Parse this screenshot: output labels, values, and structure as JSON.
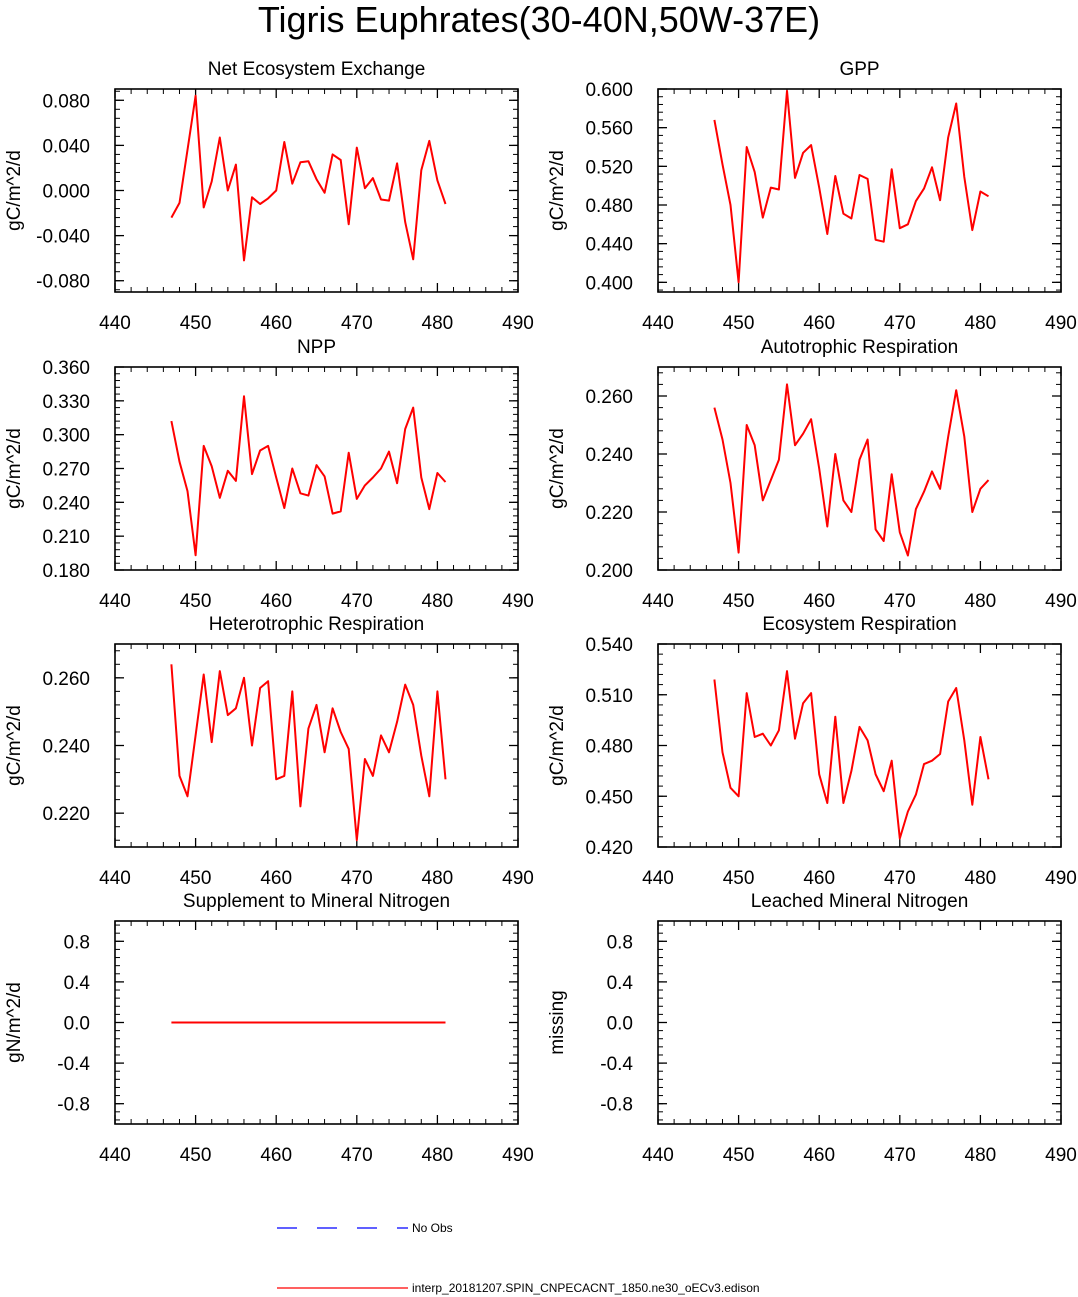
{
  "title": "Tigris Euphrates(30-40N,50W-37E)",
  "colors": {
    "model": "#ff0000",
    "obs": "#0000ff",
    "axis": "#000000"
  },
  "legend": {
    "obs_label": "No Obs",
    "model_label": "interp_20181207.SPIN_CNPECACNT_1850.ne30_oECv3.edison"
  },
  "chart_data": [
    {
      "type": "line",
      "title": "Net Ecosystem Exchange",
      "ylabel": "gC/m^2/d",
      "xlim": [
        440,
        490
      ],
      "xticks": [
        440,
        450,
        460,
        470,
        480,
        490
      ],
      "xtick_labels": [
        "440",
        "450",
        "460",
        "470",
        "480",
        "490"
      ],
      "ylim": [
        -0.09,
        0.09
      ],
      "yticks": [
        -0.08,
        -0.04,
        0.0,
        0.04,
        0.08
      ],
      "ytick_labels": [
        "-0.080",
        "-0.040",
        "0.000",
        "0.040",
        "0.080"
      ],
      "x": [
        447,
        448,
        449,
        450,
        451,
        452,
        453,
        454,
        455,
        456,
        457,
        458,
        459,
        460,
        461,
        462,
        463,
        464,
        465,
        466,
        467,
        468,
        469,
        470,
        471,
        472,
        473,
        474,
        475,
        476,
        477,
        478,
        479,
        480,
        481
      ],
      "series": [
        {
          "name": "interp_20181207.SPIN_CNPECACNT_1850.ne30_oECv3.edison",
          "values": [
            -0.024,
            -0.011,
            0.036,
            0.084,
            -0.015,
            0.008,
            0.047,
            0.0,
            0.023,
            -0.062,
            -0.006,
            -0.012,
            -0.007,
            0.0,
            0.043,
            0.006,
            0.025,
            0.026,
            0.01,
            -0.002,
            0.032,
            0.027,
            -0.03,
            0.038,
            0.002,
            0.011,
            -0.008,
            -0.009,
            0.024,
            -0.028,
            -0.061,
            0.018,
            0.044,
            0.009,
            -0.012
          ]
        }
      ]
    },
    {
      "type": "line",
      "title": "GPP",
      "ylabel": "gC/m^2/d",
      "xlim": [
        440,
        490
      ],
      "xticks": [
        440,
        450,
        460,
        470,
        480,
        490
      ],
      "xtick_labels": [
        "440",
        "450",
        "460",
        "470",
        "480",
        "490"
      ],
      "ylim": [
        0.39,
        0.6
      ],
      "yticks": [
        0.4,
        0.44,
        0.48,
        0.52,
        0.56,
        0.6
      ],
      "ytick_labels": [
        "0.400",
        "0.440",
        "0.480",
        "0.520",
        "0.560",
        "0.600"
      ],
      "x": [
        447,
        448,
        449,
        450,
        451,
        452,
        453,
        454,
        455,
        456,
        457,
        458,
        459,
        460,
        461,
        462,
        463,
        464,
        465,
        466,
        467,
        468,
        469,
        470,
        471,
        472,
        473,
        474,
        475,
        476,
        477,
        478,
        479,
        480,
        481
      ],
      "series": [
        {
          "name": "interp_20181207.SPIN_CNPECACNT_1850.ne30_oECv3.edison",
          "values": [
            0.568,
            0.522,
            0.48,
            0.4,
            0.54,
            0.514,
            0.467,
            0.498,
            0.496,
            0.598,
            0.508,
            0.534,
            0.542,
            0.498,
            0.45,
            0.51,
            0.471,
            0.466,
            0.511,
            0.507,
            0.444,
            0.442,
            0.517,
            0.456,
            0.46,
            0.484,
            0.497,
            0.519,
            0.485,
            0.55,
            0.585,
            0.509,
            0.454,
            0.494,
            0.489
          ]
        }
      ]
    },
    {
      "type": "line",
      "title": "NPP",
      "ylabel": "gC/m^2/d",
      "xlim": [
        440,
        490
      ],
      "xticks": [
        440,
        450,
        460,
        470,
        480,
        490
      ],
      "xtick_labels": [
        "440",
        "450",
        "460",
        "470",
        "480",
        "490"
      ],
      "ylim": [
        0.18,
        0.36
      ],
      "yticks": [
        0.18,
        0.21,
        0.24,
        0.27,
        0.3,
        0.33,
        0.36
      ],
      "ytick_labels": [
        "0.180",
        "0.210",
        "0.240",
        "0.270",
        "0.300",
        "0.330",
        "0.360"
      ],
      "x": [
        447,
        448,
        449,
        450,
        451,
        452,
        453,
        454,
        455,
        456,
        457,
        458,
        459,
        460,
        461,
        462,
        463,
        464,
        465,
        466,
        467,
        468,
        469,
        470,
        471,
        472,
        473,
        474,
        475,
        476,
        477,
        478,
        479,
        480,
        481
      ],
      "series": [
        {
          "name": "interp_20181207.SPIN_CNPECACNT_1850.ne30_oECv3.edison",
          "values": [
            0.312,
            0.276,
            0.25,
            0.193,
            0.29,
            0.272,
            0.244,
            0.268,
            0.259,
            0.334,
            0.265,
            0.286,
            0.29,
            0.262,
            0.235,
            0.27,
            0.248,
            0.246,
            0.273,
            0.263,
            0.23,
            0.232,
            0.284,
            0.243,
            0.255,
            0.262,
            0.27,
            0.285,
            0.257,
            0.305,
            0.324,
            0.262,
            0.234,
            0.266,
            0.258
          ]
        }
      ]
    },
    {
      "type": "line",
      "title": "Autotrophic Respiration",
      "ylabel": "gC/m^2/d",
      "xlim": [
        440,
        490
      ],
      "xticks": [
        440,
        450,
        460,
        470,
        480,
        490
      ],
      "xtick_labels": [
        "440",
        "450",
        "460",
        "470",
        "480",
        "490"
      ],
      "ylim": [
        0.2,
        0.27
      ],
      "yticks": [
        0.2,
        0.22,
        0.24,
        0.26
      ],
      "ytick_labels": [
        "0.200",
        "0.220",
        "0.240",
        "0.260"
      ],
      "x": [
        447,
        448,
        449,
        450,
        451,
        452,
        453,
        454,
        455,
        456,
        457,
        458,
        459,
        460,
        461,
        462,
        463,
        464,
        465,
        466,
        467,
        468,
        469,
        470,
        471,
        472,
        473,
        474,
        475,
        476,
        477,
        478,
        479,
        480,
        481
      ],
      "series": [
        {
          "name": "interp_20181207.SPIN_CNPECACNT_1850.ne30_oECv3.edison",
          "values": [
            0.256,
            0.245,
            0.23,
            0.206,
            0.25,
            0.243,
            0.224,
            0.231,
            0.238,
            0.264,
            0.243,
            0.247,
            0.252,
            0.235,
            0.215,
            0.24,
            0.224,
            0.22,
            0.238,
            0.245,
            0.214,
            0.21,
            0.233,
            0.213,
            0.205,
            0.221,
            0.227,
            0.234,
            0.228,
            0.246,
            0.262,
            0.246,
            0.22,
            0.228,
            0.231
          ]
        }
      ]
    },
    {
      "type": "line",
      "title": "Heterotrophic Respiration",
      "ylabel": "gC/m^2/d",
      "xlim": [
        440,
        490
      ],
      "xticks": [
        440,
        450,
        460,
        470,
        480,
        490
      ],
      "xtick_labels": [
        "440",
        "450",
        "460",
        "470",
        "480",
        "490"
      ],
      "ylim": [
        0.21,
        0.27
      ],
      "yticks": [
        0.22,
        0.24,
        0.26
      ],
      "ytick_labels": [
        "0.220",
        "0.240",
        "0.260"
      ],
      "x": [
        447,
        448,
        449,
        450,
        451,
        452,
        453,
        454,
        455,
        456,
        457,
        458,
        459,
        460,
        461,
        462,
        463,
        464,
        465,
        466,
        467,
        468,
        469,
        470,
        471,
        472,
        473,
        474,
        475,
        476,
        477,
        478,
        479,
        480,
        481
      ],
      "series": [
        {
          "name": "interp_20181207.SPIN_CNPECACNT_1850.ne30_oECv3.edison",
          "values": [
            0.264,
            0.231,
            0.225,
            0.243,
            0.261,
            0.241,
            0.262,
            0.249,
            0.251,
            0.26,
            0.24,
            0.257,
            0.259,
            0.23,
            0.231,
            0.256,
            0.222,
            0.245,
            0.252,
            0.238,
            0.251,
            0.244,
            0.239,
            0.212,
            0.236,
            0.231,
            0.243,
            0.238,
            0.247,
            0.258,
            0.252,
            0.237,
            0.225,
            0.256,
            0.23
          ]
        }
      ]
    },
    {
      "type": "line",
      "title": "Ecosystem Respiration",
      "ylabel": "gC/m^2/d",
      "xlim": [
        440,
        490
      ],
      "xticks": [
        440,
        450,
        460,
        470,
        480,
        490
      ],
      "xtick_labels": [
        "440",
        "450",
        "460",
        "470",
        "480",
        "490"
      ],
      "ylim": [
        0.42,
        0.54
      ],
      "yticks": [
        0.42,
        0.45,
        0.48,
        0.51,
        0.54
      ],
      "ytick_labels": [
        "0.420",
        "0.450",
        "0.480",
        "0.510",
        "0.540"
      ],
      "x": [
        447,
        448,
        449,
        450,
        451,
        452,
        453,
        454,
        455,
        456,
        457,
        458,
        459,
        460,
        461,
        462,
        463,
        464,
        465,
        466,
        467,
        468,
        469,
        470,
        471,
        472,
        473,
        474,
        475,
        476,
        477,
        478,
        479,
        480,
        481
      ],
      "series": [
        {
          "name": "interp_20181207.SPIN_CNPECACNT_1850.ne30_oECv3.edison",
          "values": [
            0.519,
            0.476,
            0.455,
            0.45,
            0.511,
            0.485,
            0.487,
            0.48,
            0.489,
            0.524,
            0.484,
            0.505,
            0.511,
            0.463,
            0.446,
            0.497,
            0.446,
            0.465,
            0.491,
            0.483,
            0.463,
            0.453,
            0.471,
            0.425,
            0.441,
            0.451,
            0.469,
            0.471,
            0.475,
            0.506,
            0.514,
            0.483,
            0.445,
            0.485,
            0.46
          ]
        }
      ]
    },
    {
      "type": "line",
      "title": "Supplement to Mineral Nitrogen",
      "ylabel": "gN/m^2/d",
      "xlim": [
        440,
        490
      ],
      "xticks": [
        440,
        450,
        460,
        470,
        480,
        490
      ],
      "xtick_labels": [
        "440",
        "450",
        "460",
        "470",
        "480",
        "490"
      ],
      "ylim": [
        -1.0,
        1.0
      ],
      "yticks": [
        -0.8,
        -0.4,
        0.0,
        0.4,
        0.8
      ],
      "ytick_labels": [
        "-0.8",
        "-0.4",
        "0.0",
        "0.4",
        "0.8"
      ],
      "x": [
        447,
        448,
        449,
        450,
        451,
        452,
        453,
        454,
        455,
        456,
        457,
        458,
        459,
        460,
        461,
        462,
        463,
        464,
        465,
        466,
        467,
        468,
        469,
        470,
        471,
        472,
        473,
        474,
        475,
        476,
        477,
        478,
        479,
        480,
        481
      ],
      "series": [
        {
          "name": "interp_20181207.SPIN_CNPECACNT_1850.ne30_oECv3.edison",
          "values": [
            0,
            0,
            0,
            0,
            0,
            0,
            0,
            0,
            0,
            0,
            0,
            0,
            0,
            0,
            0,
            0,
            0,
            0,
            0,
            0,
            0,
            0,
            0,
            0,
            0,
            0,
            0,
            0,
            0,
            0,
            0,
            0,
            0,
            0,
            0
          ]
        }
      ]
    },
    {
      "type": "line",
      "title": "Leached Mineral Nitrogen",
      "ylabel": "missing",
      "xlim": [
        440,
        490
      ],
      "xticks": [
        440,
        450,
        460,
        470,
        480,
        490
      ],
      "xtick_labels": [
        "440",
        "450",
        "460",
        "470",
        "480",
        "490"
      ],
      "ylim": [
        -1.0,
        1.0
      ],
      "yticks": [
        -0.8,
        -0.4,
        0.0,
        0.4,
        0.8
      ],
      "ytick_labels": [
        "-0.8",
        "-0.4",
        "0.0",
        "0.4",
        "0.8"
      ],
      "x": [],
      "series": []
    }
  ]
}
